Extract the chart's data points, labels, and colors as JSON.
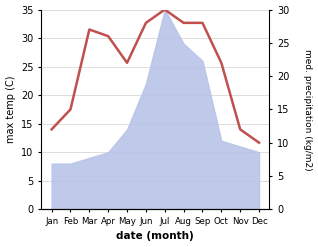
{
  "months": [
    "Jan",
    "Feb",
    "Mar",
    "Apr",
    "May",
    "Jun",
    "Jul",
    "Aug",
    "Sep",
    "Oct",
    "Nov",
    "Dec"
  ],
  "temperature": [
    12,
    15,
    27,
    26,
    22,
    28,
    30,
    28,
    28,
    22,
    12,
    10
  ],
  "precipitation": [
    8,
    8,
    9,
    10,
    14,
    22,
    35,
    29,
    26,
    12,
    11,
    10
  ],
  "temp_color": "#c0504d",
  "precip_color": "#b8c4e8",
  "ylabel_left": "max temp (C)",
  "ylabel_right": "med. precipitation (kg/m2)",
  "xlabel": "date (month)",
  "ylim_left": [
    0,
    35
  ],
  "ylim_right": [
    0,
    30
  ],
  "background_color": "#ffffff",
  "grid_color": "#d0d0d0"
}
